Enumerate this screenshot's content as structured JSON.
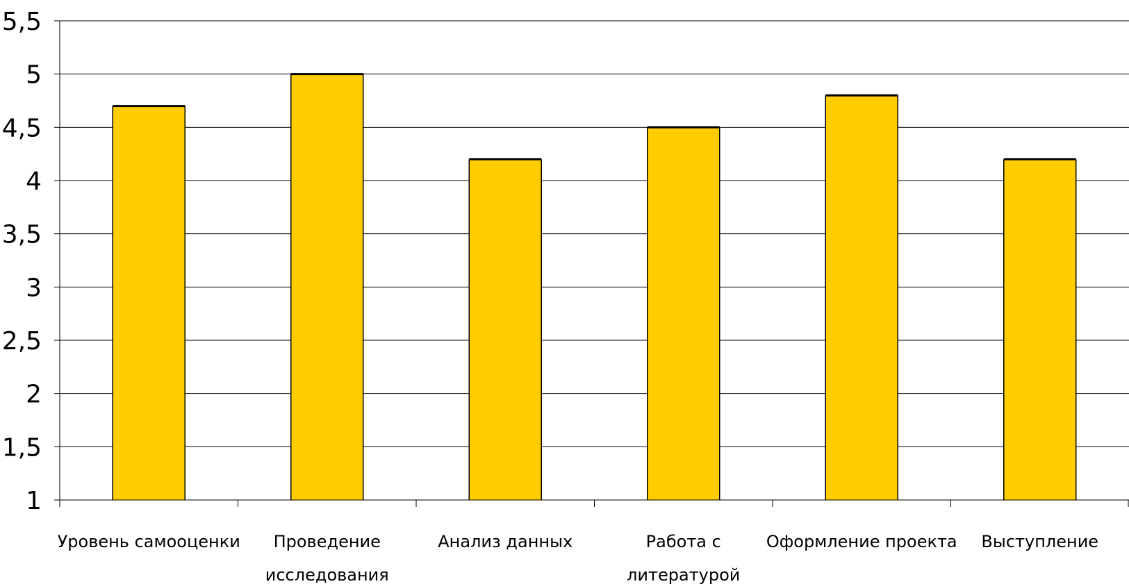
{
  "chart_data": {
    "type": "bar",
    "categories": [
      [
        "Уровень самооценки"
      ],
      [
        "Проведение",
        "исследования"
      ],
      [
        "Анализ данных"
      ],
      [
        "Работа с",
        "литературой"
      ],
      [
        "Оформление проекта"
      ],
      [
        "Выступление"
      ]
    ],
    "values": [
      4.7,
      5.0,
      4.2,
      4.5,
      4.8,
      4.2
    ],
    "yticks": [
      "1",
      "1,5",
      "2",
      "2,5",
      "3",
      "3,5",
      "4",
      "4,5",
      "5",
      "5,5"
    ],
    "ylim": [
      1,
      5.5
    ],
    "ystep": 0.5,
    "grid": true,
    "bar_color": "#FFCC00",
    "bar_edge_color": "#000000"
  }
}
